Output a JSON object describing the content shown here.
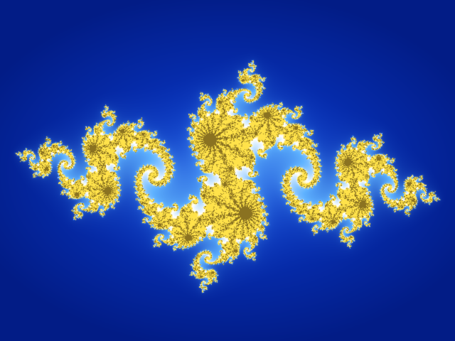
{
  "image": {
    "subject": "julia-set-fractal",
    "palette": {
      "background_edge": "#021c86",
      "background_center": "#0a3ed8",
      "glow": "#5fb2ff",
      "filament": "#ffffff",
      "core": "#ffe24a",
      "core_dark": "#2a1600"
    },
    "fractal": {
      "c_re": -0.8,
      "c_im": 0.156,
      "max_iter": 220
    }
  }
}
